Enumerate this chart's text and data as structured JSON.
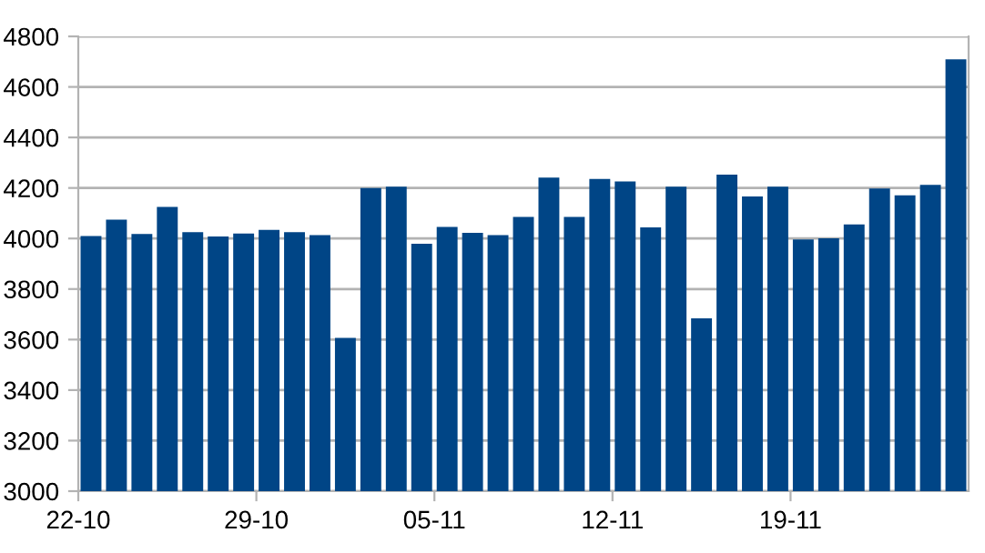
{
  "chart_data": {
    "type": "bar",
    "categories": [
      "22-10",
      null,
      null,
      null,
      null,
      null,
      null,
      "29-10",
      null,
      null,
      null,
      null,
      null,
      null,
      "05-11",
      null,
      null,
      null,
      null,
      null,
      null,
      "12-11",
      null,
      null,
      null,
      null,
      null,
      null,
      "19-11",
      null,
      null,
      null,
      null,
      null,
      null
    ],
    "values": [
      4010,
      4075,
      4018,
      4125,
      4025,
      4008,
      4020,
      4034,
      4025,
      4013,
      3607,
      4200,
      4205,
      3979,
      4046,
      4022,
      4013,
      4085,
      4241,
      4085,
      4236,
      4226,
      4044,
      4205,
      3684,
      4253,
      4166,
      4205,
      3996,
      4001,
      4056,
      4198,
      4171,
      4212,
      4709
    ],
    "color": "#004586",
    "ylim": [
      3000,
      4800
    ],
    "yticks": [
      3000,
      3200,
      3400,
      3600,
      3800,
      4000,
      4200,
      4400,
      4600,
      4800
    ],
    "grid": "y"
  }
}
